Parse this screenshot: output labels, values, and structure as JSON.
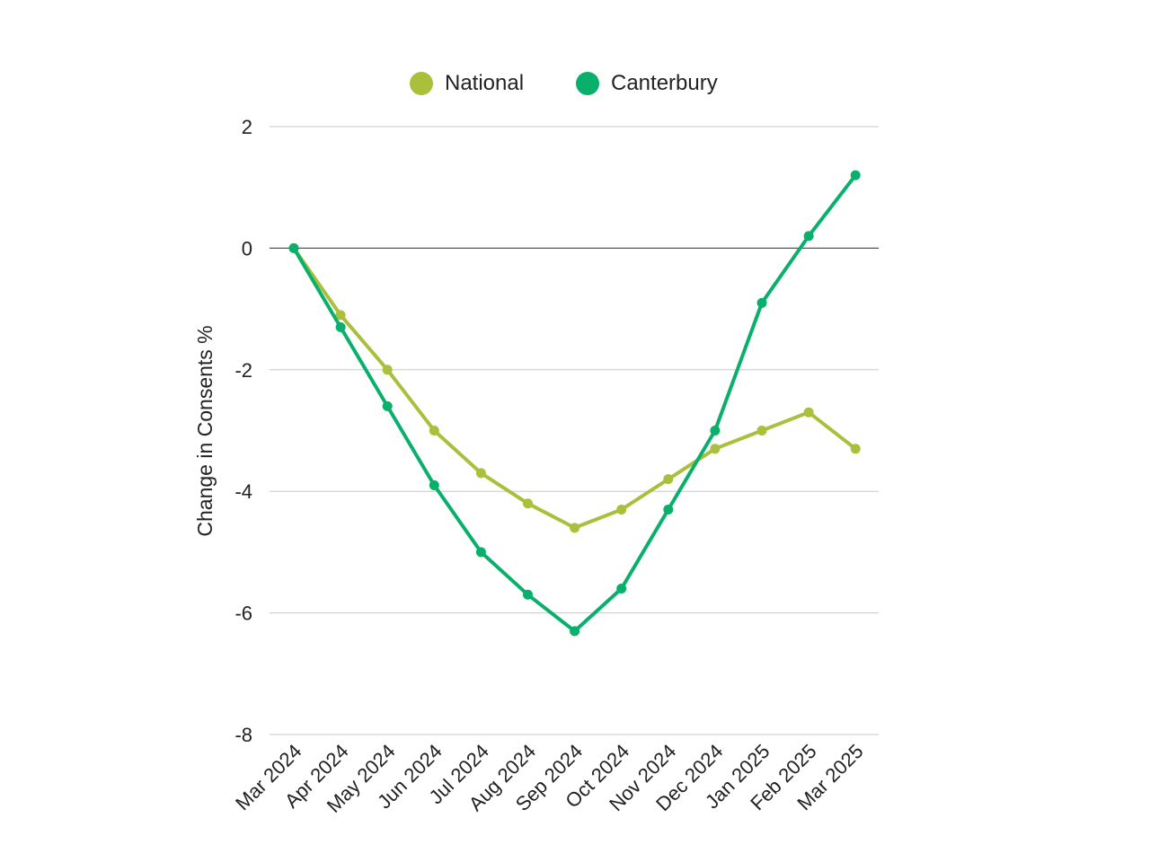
{
  "chart_data": {
    "type": "line",
    "title": "",
    "xlabel": "",
    "ylabel": "Change in Consents %",
    "ylim": [
      -8,
      2
    ],
    "yticks": [
      2,
      0,
      -2,
      -4,
      -6,
      -8
    ],
    "grid": true,
    "legend_position": "top-center",
    "categories": [
      "Mar 2024",
      "Apr 2024",
      "May 2024",
      "Jun 2024",
      "Jul 2024",
      "Aug 2024",
      "Sep 2024",
      "Oct 2024",
      "Nov 2024",
      "Dec 2024",
      "Jan 2025",
      "Feb 2025",
      "Mar 2025"
    ],
    "series": [
      {
        "name": "National",
        "color": "#aabf3b",
        "values": [
          0,
          -1.1,
          -2.0,
          -3.0,
          -3.7,
          -4.2,
          -4.6,
          -4.3,
          -3.8,
          -3.3,
          -3.0,
          -2.7,
          -3.3
        ]
      },
      {
        "name": "Canterbury",
        "color": "#09b06c",
        "values": [
          0,
          -1.3,
          -2.6,
          -3.9,
          -5.0,
          -5.7,
          -6.3,
          -5.6,
          -4.3,
          -3.0,
          -0.9,
          0.2,
          1.2
        ]
      }
    ]
  }
}
